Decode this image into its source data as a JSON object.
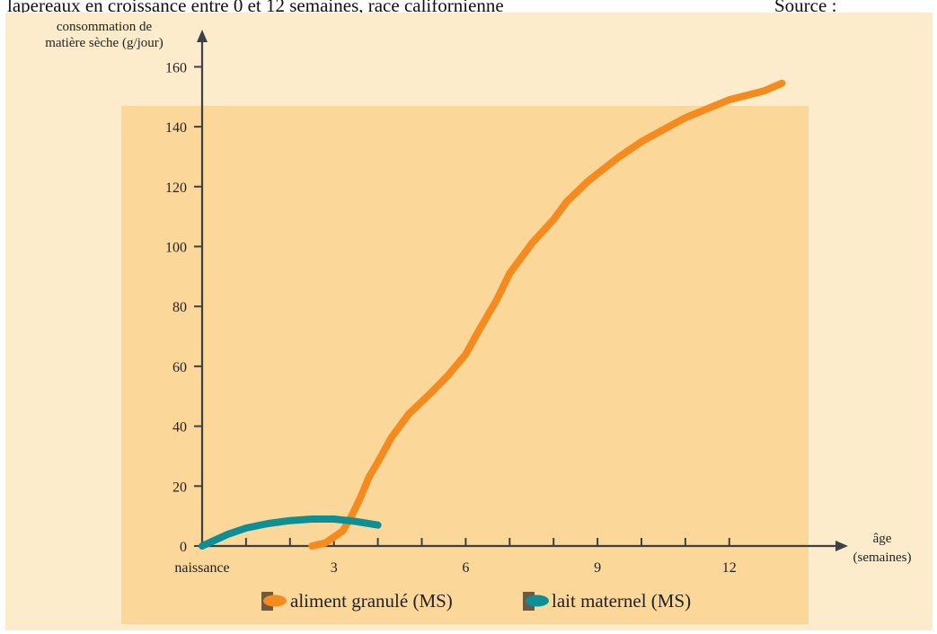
{
  "header": {
    "caption_fragment": "lapereaux en croissance entre 0 et 12 semaines, race californienne",
    "source_fragment": "Source :"
  },
  "colors": {
    "page_bg": "#fdeccb",
    "panel_bg": "#fbd79a",
    "axis": "#3d4047",
    "aliment": "#f58a1e",
    "lait": "#0e8f96",
    "legend_swatch": "#6e5a44"
  },
  "chart_data": {
    "type": "line",
    "ylabel": [
      "consommation de",
      "matière sèche (g/jour)"
    ],
    "xlabel": [
      "âge",
      "(semaines)"
    ],
    "ylim": [
      0,
      160
    ],
    "xlim": [
      0,
      14
    ],
    "yticks": [
      0,
      20,
      40,
      60,
      80,
      100,
      120,
      140,
      160
    ],
    "xticks": [
      {
        "value": 0,
        "label": "naissance"
      },
      {
        "value": 1,
        "label": ""
      },
      {
        "value": 2,
        "label": ""
      },
      {
        "value": 3,
        "label": "3"
      },
      {
        "value": 4,
        "label": ""
      },
      {
        "value": 5,
        "label": ""
      },
      {
        "value": 6,
        "label": "6"
      },
      {
        "value": 7,
        "label": ""
      },
      {
        "value": 8,
        "label": ""
      },
      {
        "value": 9,
        "label": "9"
      },
      {
        "value": 10,
        "label": ""
      },
      {
        "value": 11,
        "label": ""
      },
      {
        "value": 12,
        "label": "12"
      }
    ],
    "grid": false,
    "legend_position": "bottom",
    "series": [
      {
        "name": "aliment granulé (MS)",
        "color_key": "aliment",
        "points": [
          [
            2.5,
            0
          ],
          [
            2.8,
            1
          ],
          [
            3.0,
            3
          ],
          [
            3.2,
            5
          ],
          [
            3.4,
            10
          ],
          [
            3.6,
            16
          ],
          [
            3.8,
            23
          ],
          [
            4.0,
            28
          ],
          [
            4.3,
            36
          ],
          [
            4.7,
            44
          ],
          [
            5.2,
            51
          ],
          [
            5.6,
            57
          ],
          [
            6.0,
            64
          ],
          [
            6.3,
            72
          ],
          [
            6.7,
            82
          ],
          [
            7.0,
            91
          ],
          [
            7.5,
            101
          ],
          [
            8.0,
            109
          ],
          [
            8.3,
            115
          ],
          [
            8.8,
            122
          ],
          [
            9.5,
            130
          ],
          [
            10.0,
            135
          ],
          [
            10.5,
            139
          ],
          [
            11.0,
            143
          ],
          [
            11.5,
            146
          ],
          [
            12.0,
            149
          ],
          [
            12.8,
            152
          ],
          [
            13.2,
            154.5
          ]
        ]
      },
      {
        "name": "lait maternel (MS)",
        "color_key": "lait",
        "points": [
          [
            0,
            0
          ],
          [
            0.3,
            2
          ],
          [
            0.6,
            4
          ],
          [
            1.0,
            6
          ],
          [
            1.5,
            7.5
          ],
          [
            2.0,
            8.5
          ],
          [
            2.5,
            9
          ],
          [
            3.0,
            9
          ],
          [
            3.5,
            8.2
          ],
          [
            4.0,
            7
          ]
        ]
      }
    ]
  }
}
